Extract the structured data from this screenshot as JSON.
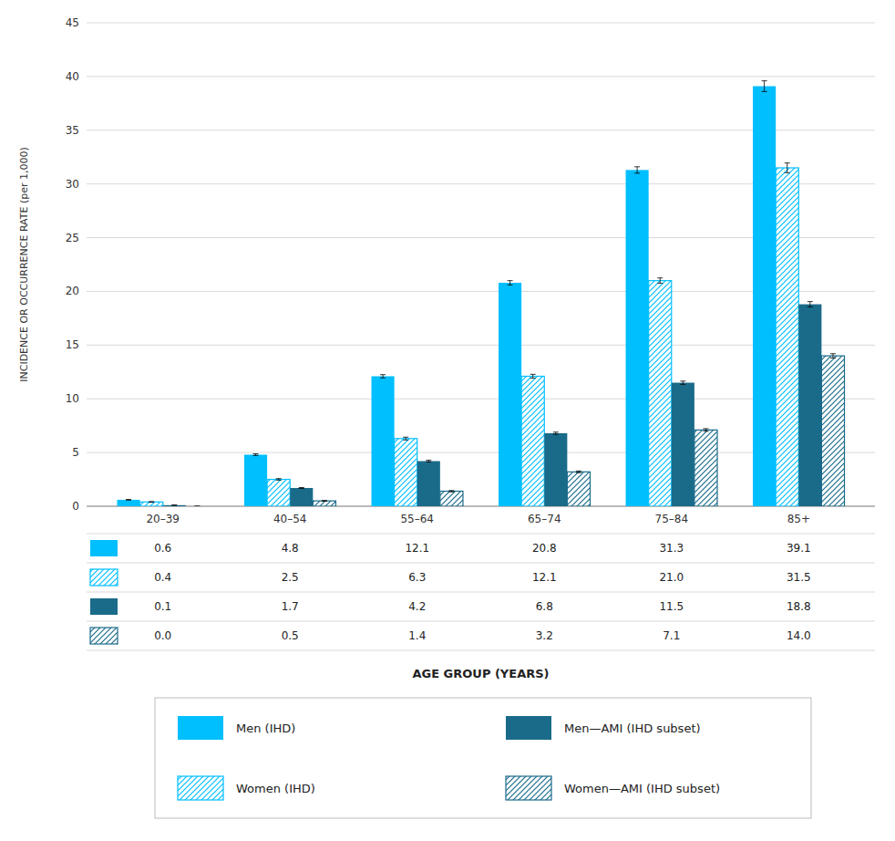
{
  "chart_data": {
    "type": "bar",
    "categories": [
      "20–39",
      "40–54",
      "55–64",
      "65–74",
      "75–84",
      "85+"
    ],
    "series": [
      {
        "name": "Men (IHD)",
        "color": "#00BFFF",
        "values": [
          0.6,
          4.8,
          12.1,
          20.8,
          31.3,
          39.1
        ],
        "errors": [
          0.03,
          0.08,
          0.15,
          0.2,
          0.3,
          0.5
        ],
        "value_labels": [
          "0.6",
          "4.8",
          "12.1",
          "20.8",
          "31.3",
          "39.1"
        ]
      },
      {
        "name": "Women (IHD)",
        "color": "#00BFFF",
        "values": [
          0.4,
          2.5,
          6.3,
          12.1,
          21.0,
          31.5
        ],
        "errors": [
          0.03,
          0.07,
          0.13,
          0.18,
          0.25,
          0.45
        ],
        "value_labels": [
          "0.4",
          "2.5",
          "6.3",
          "12.1",
          "21.0",
          "31.5"
        ]
      },
      {
        "name": "Men—AMI (IHD subset)",
        "color": "#1A6B8A",
        "values": [
          0.1,
          1.7,
          4.2,
          6.8,
          11.5,
          18.8
        ],
        "errors": [
          0.01,
          0.04,
          0.08,
          0.1,
          0.15,
          0.25
        ],
        "value_labels": [
          "0.1",
          "1.7",
          "4.2",
          "6.8",
          "11.5",
          "18.8"
        ]
      },
      {
        "name": "Women—AMI (IHD subset)",
        "color": "#1A6B8A",
        "values": [
          0.0,
          0.5,
          1.4,
          3.2,
          7.1,
          14.0
        ],
        "errors": [
          0.01,
          0.03,
          0.06,
          0.08,
          0.12,
          0.2
        ],
        "value_labels": [
          "0.0",
          "0.5",
          "1.4",
          "3.2",
          "7.1",
          "14.0"
        ]
      }
    ],
    "ylabel": "INCIDENCE OR OCCURRENCE RATE (per 1,000)",
    "xlabel": "AGE GROUP (YEARS)",
    "ylim": [
      0,
      45
    ],
    "yticks": [
      0,
      5,
      10,
      15,
      20,
      25,
      30,
      35,
      40,
      45
    ],
    "grid": true,
    "legend": "bottom"
  }
}
